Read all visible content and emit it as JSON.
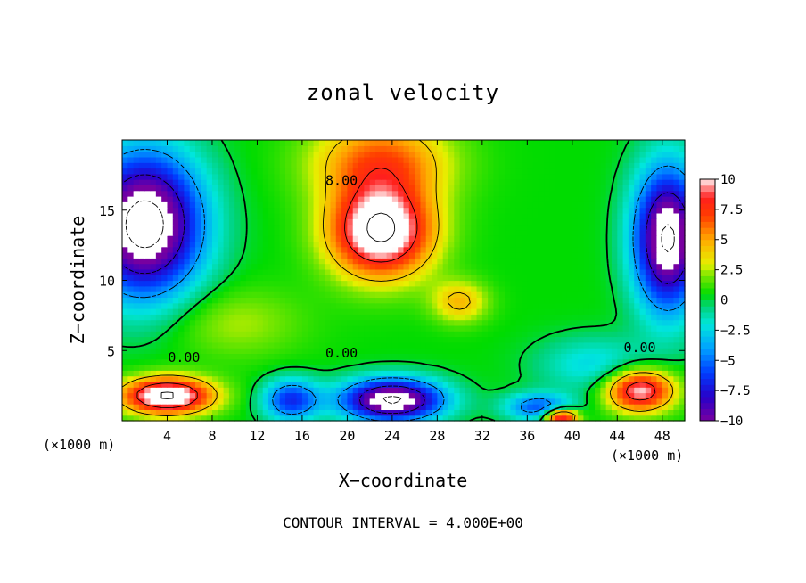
{
  "chart_data": {
    "type": "heatmap",
    "title": "zonal velocity",
    "xlabel": "X−coordinate",
    "ylabel": "Z−coordinate",
    "x_unit": "(×1000 m)",
    "xlim": [
      0,
      50
    ],
    "ylim": [
      0,
      20
    ],
    "xticks": [
      4,
      8,
      12,
      16,
      20,
      24,
      28,
      32,
      36,
      40,
      44,
      48
    ],
    "yticks": [
      5,
      10,
      15
    ],
    "colorbar": {
      "range": [
        -10,
        10
      ],
      "ticks": [
        10,
        7.5,
        5,
        2.5,
        0,
        -2.5,
        -5,
        -7.5,
        -10
      ],
      "tick_labels": [
        "10",
        "7.5",
        "5",
        "2.5",
        "0",
        "−2.5",
        "−5",
        "−7.5",
        "−10"
      ]
    },
    "contour_interval": 4.0,
    "contour_labels": [
      {
        "text": "8.00",
        "x": 19.5,
        "y": 16.8
      },
      {
        "text": "0.00",
        "x": 5.5,
        "y": 4.2
      },
      {
        "text": "0.00",
        "x": 19.5,
        "y": 4.5
      },
      {
        "text": "0.00",
        "x": 46.0,
        "y": 4.9
      }
    ],
    "field_features": [
      {
        "x": 23,
        "y": 13.5,
        "sx": 4.5,
        "sy": 3.2,
        "amp": 12
      },
      {
        "x": 23,
        "y": 18.5,
        "sx": 6,
        "sy": 3,
        "amp": 6
      },
      {
        "x": 30,
        "y": 8.5,
        "sx": 2.5,
        "sy": 1.5,
        "amp": 4
      },
      {
        "x": 2,
        "y": 14,
        "sx": 5,
        "sy": 5,
        "amp": -14
      },
      {
        "x": 48.5,
        "y": 13,
        "sx": 3,
        "sy": 5,
        "amp": -13
      },
      {
        "x": 42,
        "y": 4,
        "sx": 5,
        "sy": 2,
        "amp": -3
      },
      {
        "x": 24,
        "y": 1.5,
        "sx": 4.5,
        "sy": 1.5,
        "amp": -13
      },
      {
        "x": 4,
        "y": 1.8,
        "sx": 4,
        "sy": 1.3,
        "amp": 12
      },
      {
        "x": 46,
        "y": 2.2,
        "sx": 3,
        "sy": 1.5,
        "amp": 10
      },
      {
        "x": 10,
        "y": 7,
        "sx": 6,
        "sy": 2.5,
        "amp": 2
      },
      {
        "x": 37,
        "y": 1,
        "sx": 3,
        "sy": 1,
        "amp": -6
      },
      {
        "x": 39,
        "y": 0.3,
        "sx": 1.5,
        "sy": 0.6,
        "amp": 10
      },
      {
        "x": 15,
        "y": 1.5,
        "sx": 2.5,
        "sy": 1.5,
        "amp": -7
      }
    ]
  },
  "footer": "CONTOUR INTERVAL = 4.000E+00"
}
